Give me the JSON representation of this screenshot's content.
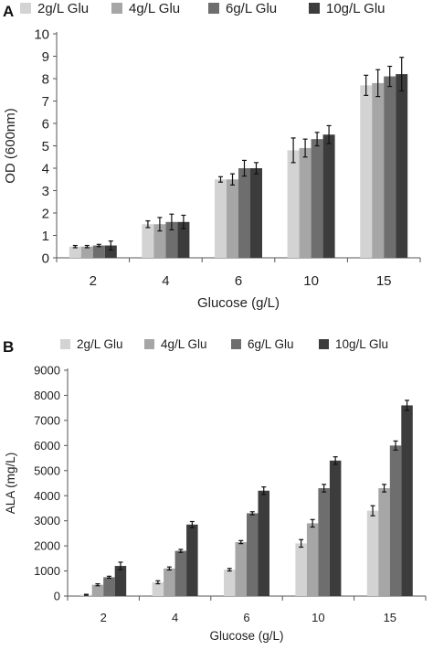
{
  "figure": {
    "panel_a_letter": "A",
    "panel_b_letter": "B"
  },
  "chart_data": [
    {
      "type": "bar",
      "panel": "A",
      "title": "",
      "xlabel": "Glucose (g/L)",
      "ylabel": "OD (600nm)",
      "categories": [
        "2",
        "4",
        "6",
        "10",
        "15"
      ],
      "ylim": [
        0,
        10
      ],
      "yticks": [
        0,
        1,
        2,
        3,
        4,
        5,
        6,
        7,
        8,
        9,
        10
      ],
      "grid": false,
      "legend_position": "top",
      "series": [
        {
          "name": "2g/L Glu",
          "color": "#d3d3d3",
          "values": [
            0.5,
            1.5,
            3.5,
            4.8,
            7.7
          ],
          "errors": [
            0.05,
            0.15,
            0.12,
            0.55,
            0.45
          ]
        },
        {
          "name": "4g/L Glu",
          "color": "#a6a6a6",
          "values": [
            0.5,
            1.5,
            3.5,
            4.9,
            7.8
          ],
          "errors": [
            0.05,
            0.3,
            0.25,
            0.4,
            0.6
          ]
        },
        {
          "name": "6g/L Glu",
          "color": "#6e6e6e",
          "values": [
            0.55,
            1.6,
            4.0,
            5.3,
            8.1
          ],
          "errors": [
            0.05,
            0.35,
            0.35,
            0.3,
            0.45
          ]
        },
        {
          "name": "10g/L Glu",
          "color": "#3c3c3c",
          "values": [
            0.55,
            1.6,
            4.0,
            5.5,
            8.2
          ],
          "errors": [
            0.2,
            0.3,
            0.25,
            0.4,
            0.75
          ]
        }
      ]
    },
    {
      "type": "bar",
      "panel": "B",
      "title": "",
      "xlabel": "Glucose (g/L)",
      "ylabel": "ALA (mg/L)",
      "categories": [
        "2",
        "4",
        "6",
        "10",
        "15"
      ],
      "ylim": [
        0,
        9000
      ],
      "yticks": [
        0,
        1000,
        2000,
        3000,
        4000,
        5000,
        6000,
        7000,
        8000,
        9000
      ],
      "grid": false,
      "legend_position": "top",
      "series": [
        {
          "name": "2g/L Glu",
          "color": "#d3d3d3",
          "values": [
            50,
            550,
            1050,
            2100,
            3400
          ],
          "errors": [
            20,
            60,
            50,
            150,
            200
          ]
        },
        {
          "name": "4g/L Glu",
          "color": "#a6a6a6",
          "values": [
            450,
            1100,
            2150,
            2900,
            4300
          ],
          "errors": [
            40,
            60,
            60,
            150,
            150
          ]
        },
        {
          "name": "6g/L Glu",
          "color": "#6e6e6e",
          "values": [
            750,
            1800,
            3300,
            4300,
            6000
          ],
          "errors": [
            40,
            60,
            60,
            150,
            180
          ]
        },
        {
          "name": "10g/L Glu",
          "color": "#3c3c3c",
          "values": [
            1200,
            2850,
            4200,
            5400,
            7600
          ],
          "errors": [
            150,
            120,
            150,
            150,
            200
          ]
        }
      ]
    }
  ]
}
